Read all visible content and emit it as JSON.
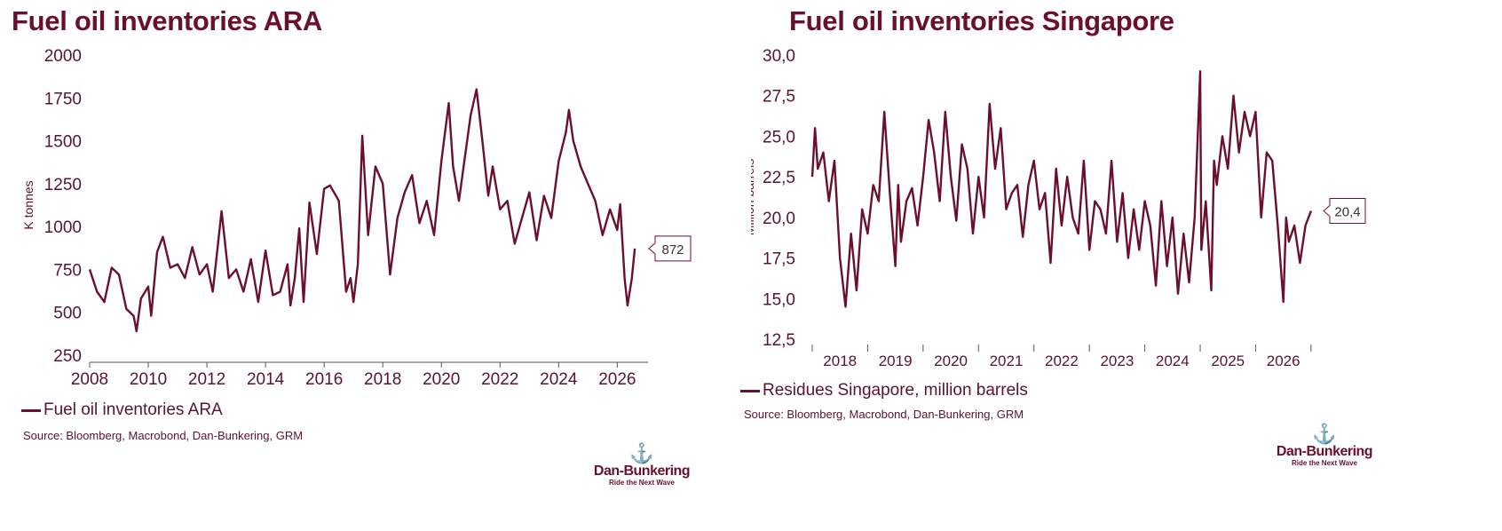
{
  "colors": {
    "line": "#6b0f2a",
    "axis": "#333333",
    "text": "#5a1428"
  },
  "charts": [
    {
      "title": "Fuel oil inventories ARA",
      "legend": "Fuel oil inventories ARA",
      "source": "Source: Bloomberg, Macrobond, Dan-Bunkering, GRM",
      "logo": {
        "brand": "Dan-Bunkering",
        "tagline": "Ride the Next Wave",
        "icon": "anchor-logo-icon"
      }
    },
    {
      "title": "Fuel oil inventories Singapore",
      "legend": "Residues Singapore, million barrels",
      "source": "Source: Bloomberg, Macrobond, Dan-Bunkering, GRM",
      "logo": {
        "brand": "Dan-Bunkering",
        "tagline": "Ride the Next Wave",
        "icon": "anchor-logo-icon"
      }
    }
  ],
  "chart_data": [
    {
      "type": "line",
      "title": "Fuel oil inventories ARA",
      "ylabel": "K tonnes",
      "xlabel": "",
      "ylim": [
        250,
        2000
      ],
      "yticks": [
        "250",
        "500",
        "750",
        "1000",
        "1250",
        "1500",
        "1750",
        "2000"
      ],
      "xlim": [
        2008,
        2027.05
      ],
      "xticks": [
        "2008",
        "2010",
        "2012",
        "2014",
        "2016",
        "2018",
        "2020",
        "2022",
        "2024",
        "2026"
      ],
      "last_value_label": "872",
      "grid": false,
      "series": [
        {
          "name": "Fuel oil inventories ARA",
          "x": [
            2008.0,
            2008.25,
            2008.5,
            2008.75,
            2009.0,
            2009.25,
            2009.5,
            2009.6,
            2009.75,
            2010.0,
            2010.1,
            2010.3,
            2010.5,
            2010.75,
            2011.0,
            2011.25,
            2011.5,
            2011.75,
            2012.0,
            2012.2,
            2012.5,
            2012.75,
            2013.0,
            2013.25,
            2013.5,
            2013.75,
            2014.0,
            2014.25,
            2014.5,
            2014.75,
            2014.85,
            2015.0,
            2015.15,
            2015.3,
            2015.5,
            2015.75,
            2016.0,
            2016.2,
            2016.5,
            2016.75,
            2016.9,
            2017.0,
            2017.15,
            2017.3,
            2017.5,
            2017.75,
            2018.0,
            2018.25,
            2018.5,
            2018.75,
            2019.0,
            2019.25,
            2019.5,
            2019.75,
            2020.0,
            2020.25,
            2020.4,
            2020.6,
            2020.75,
            2021.0,
            2021.2,
            2021.4,
            2021.6,
            2021.75,
            2022.0,
            2022.25,
            2022.5,
            2022.75,
            2023.0,
            2023.25,
            2023.5,
            2023.75,
            2024.0,
            2024.25,
            2024.35,
            2024.5,
            2024.75,
            2025.0,
            2025.25,
            2025.5,
            2025.75,
            2026.0,
            2026.1,
            2026.25,
            2026.35,
            2026.5,
            2026.6
          ],
          "y": [
            750,
            620,
            560,
            760,
            720,
            520,
            480,
            390,
            580,
            650,
            480,
            850,
            940,
            760,
            780,
            700,
            880,
            720,
            780,
            620,
            1090,
            700,
            750,
            620,
            810,
            560,
            860,
            600,
            620,
            780,
            540,
            700,
            990,
            560,
            1140,
            840,
            1220,
            1240,
            1150,
            620,
            700,
            560,
            780,
            1530,
            950,
            1350,
            1250,
            720,
            1050,
            1200,
            1300,
            1020,
            1150,
            950,
            1380,
            1720,
            1350,
            1150,
            1340,
            1650,
            1800,
            1500,
            1180,
            1350,
            1100,
            1150,
            900,
            1050,
            1200,
            920,
            1180,
            1050,
            1380,
            1550,
            1680,
            1500,
            1350,
            1250,
            1150,
            950,
            1100,
            980,
            1130,
            700,
            540,
            700,
            872
          ]
        }
      ]
    },
    {
      "type": "line",
      "title": "Fuel oil inventories Singapore",
      "ylabel": "Million barrels",
      "xlabel": "",
      "ylim": [
        12.5,
        30.0
      ],
      "yticks": [
        "12,5",
        "15,0",
        "17,5",
        "20,0",
        "22,5",
        "25,0",
        "27,5",
        "30,0"
      ],
      "xlim": [
        2017.5,
        2026.55
      ],
      "xticks": [
        "2018",
        "2019",
        "2020",
        "2021",
        "2022",
        "2023",
        "2024",
        "2025",
        "2026"
      ],
      "last_value_label": "20,4",
      "grid": false,
      "series": [
        {
          "name": "Residues Singapore, million barrels",
          "x": [
            2017.5,
            2017.55,
            2017.6,
            2017.7,
            2017.8,
            2017.9,
            2018.0,
            2018.1,
            2018.2,
            2018.3,
            2018.4,
            2018.5,
            2018.6,
            2018.7,
            2018.8,
            2018.9,
            2019.0,
            2019.05,
            2019.1,
            2019.2,
            2019.3,
            2019.4,
            2019.5,
            2019.6,
            2019.7,
            2019.8,
            2019.9,
            2020.0,
            2020.1,
            2020.2,
            2020.3,
            2020.4,
            2020.5,
            2020.6,
            2020.7,
            2020.8,
            2020.9,
            2021.0,
            2021.1,
            2021.2,
            2021.3,
            2021.4,
            2021.5,
            2021.6,
            2021.7,
            2021.8,
            2021.9,
            2022.0,
            2022.1,
            2022.2,
            2022.3,
            2022.4,
            2022.5,
            2022.6,
            2022.7,
            2022.8,
            2022.9,
            2023.0,
            2023.1,
            2023.2,
            2023.3,
            2023.4,
            2023.5,
            2023.6,
            2023.7,
            2023.8,
            2023.9,
            2024.0,
            2024.1,
            2024.2,
            2024.3,
            2024.4,
            2024.5,
            2024.52,
            2024.6,
            2024.7,
            2024.75,
            2024.8,
            2024.9,
            2025.0,
            2025.1,
            2025.2,
            2025.3,
            2025.4,
            2025.5,
            2025.6,
            2025.7,
            2025.8,
            2025.9,
            2026.0,
            2026.05,
            2026.1,
            2026.2,
            2026.3,
            2026.4,
            2026.5
          ],
          "y": [
            22.5,
            25.5,
            23.0,
            24.0,
            21.0,
            23.5,
            17.5,
            14.5,
            19.0,
            15.5,
            20.5,
            19.0,
            22.0,
            21.0,
            26.5,
            21.5,
            17.0,
            22.0,
            18.5,
            21.0,
            21.8,
            19.5,
            22.5,
            26.0,
            24.0,
            21.0,
            26.5,
            22.5,
            19.8,
            24.5,
            23.0,
            19.0,
            22.5,
            20.0,
            27.0,
            23.0,
            25.5,
            20.5,
            21.5,
            22.0,
            18.8,
            22.0,
            23.5,
            20.5,
            21.5,
            17.2,
            23.0,
            19.5,
            22.5,
            20.0,
            19.0,
            23.5,
            18.0,
            21.0,
            20.5,
            19.0,
            23.5,
            18.5,
            21.5,
            17.5,
            20.5,
            18.0,
            21.0,
            19.5,
            15.8,
            21.0,
            17.0,
            20.0,
            15.3,
            19.0,
            16.0,
            20.0,
            29.0,
            18.0,
            21.0,
            15.5,
            23.5,
            22.0,
            25.0,
            23.0,
            27.5,
            24.0,
            26.5,
            25.0,
            26.5,
            20.0,
            24.0,
            23.5,
            19.5,
            14.8,
            20.0,
            18.5,
            19.5,
            17.2,
            19.5,
            20.4
          ]
        }
      ]
    }
  ]
}
